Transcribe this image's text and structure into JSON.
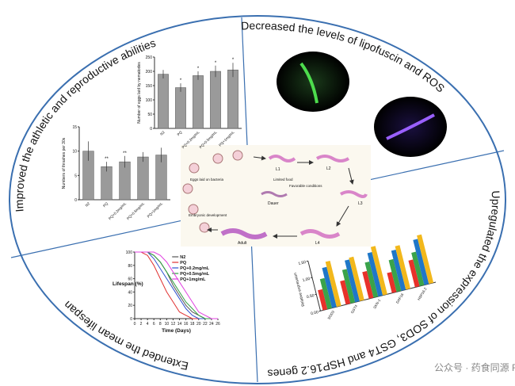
{
  "sections": [
    "Improved the athletic and reproductive abilities",
    "Decreased the levels of lipofuscin and ROS",
    "Upregulated the expression of SOD3, GST4 and HSP16.2 genes",
    "Extended the mean lifespan"
  ],
  "lifecycle": {
    "stages": [
      "L1",
      "L2",
      "L3",
      "L4",
      "Adult",
      "Dauer"
    ],
    "notes": [
      "Limited food",
      "Favorable conditions",
      "Eggs laid on bacteria",
      "Embryonic development"
    ]
  },
  "watermark": "公众号 · 药食同源 FMH",
  "chart_data": [
    {
      "type": "bar",
      "ylabel": "Number of eggs laid by nematodes",
      "categories": [
        "N2",
        "PQ",
        "PQ+0.2mg/mL",
        "PQ+0.5mg/mL",
        "PQ+1mg/mL"
      ],
      "values": [
        190,
        143,
        185,
        200,
        205
      ],
      "errors": [
        15,
        15,
        15,
        20,
        25
      ],
      "sig": [
        null,
        "*",
        "*",
        "*",
        "*"
      ],
      "color": "#9a9a9a",
      "ylim": [
        0,
        250
      ],
      "yticks": [
        0,
        50,
        100,
        150,
        200,
        250
      ]
    },
    {
      "type": "bar",
      "ylabel": "Numbers of thrashes per 30s",
      "categories": [
        "N2",
        "PQ",
        "PQ+0.2mg/mL",
        "PQ+0.5mg/mL",
        "PQ+1mg/mL"
      ],
      "values": [
        10,
        6.8,
        7.8,
        8.8,
        9.2
      ],
      "errors": [
        2,
        1,
        1.2,
        1,
        1.5
      ],
      "sig": [
        null,
        "**",
        "**",
        null,
        null
      ],
      "color": "#9a9a9a",
      "ylim": [
        0,
        15
      ],
      "yticks": [
        0,
        5,
        10,
        15
      ]
    },
    {
      "type": "line",
      "xlabel": "Time (Days)",
      "ylabel": "Lifespan (%)",
      "x": [
        0,
        2,
        4,
        6,
        8,
        10,
        12,
        14,
        16,
        18,
        20,
        22,
        24,
        26
      ],
      "xlim": [
        0,
        26
      ],
      "xticks": [
        0,
        2,
        4,
        6,
        8,
        10,
        12,
        14,
        16,
        18,
        20,
        22,
        24,
        26
      ],
      "ylim": [
        0,
        100
      ],
      "yticks": [
        0,
        20,
        40,
        60,
        80,
        100
      ],
      "series": [
        {
          "name": "N2",
          "color": "#555555",
          "values": [
            100,
            100,
            100,
            95,
            85,
            70,
            50,
            35,
            20,
            10,
            5,
            0,
            0,
            0
          ]
        },
        {
          "name": "PQ",
          "color": "#e03030",
          "values": [
            100,
            100,
            95,
            80,
            60,
            40,
            25,
            10,
            5,
            0,
            0,
            0,
            0,
            0
          ]
        },
        {
          "name": "PQ+0.2mg/mL",
          "color": "#3050d0",
          "values": [
            100,
            100,
            100,
            90,
            75,
            60,
            45,
            30,
            15,
            5,
            0,
            0,
            0,
            0
          ]
        },
        {
          "name": "PQ+0.5mg/mL",
          "color": "#30a040",
          "values": [
            100,
            100,
            100,
            95,
            85,
            70,
            55,
            40,
            25,
            15,
            5,
            0,
            0,
            0
          ]
        },
        {
          "name": "PQ+1mg/mL",
          "color": "#e040e0",
          "values": [
            100,
            100,
            100,
            100,
            95,
            85,
            70,
            55,
            40,
            25,
            10,
            5,
            0,
            0
          ]
        }
      ]
    },
    {
      "type": "bar",
      "ylabel": "Relative expression",
      "categories": [
        "SOD3",
        "GST4",
        "SKN-1",
        "DAF16",
        "HSP16.2"
      ],
      "ylim": [
        0,
        1.5
      ],
      "yticks": [
        {
          "value": 0,
          "label": "0.00"
        },
        {
          "value": 0.5,
          "label": "0.50"
        },
        {
          "value": 1,
          "label": "1.00"
        },
        {
          "value": 1.5,
          "label": "1.50"
        }
      ],
      "series": [
        {
          "color": "#e8312a",
          "values": [
            0.6,
            0.7,
            0.8,
            0.6,
            0.8
          ]
        },
        {
          "color": "#3aa34a",
          "values": [
            0.9,
            1.0,
            1.05,
            0.95,
            1.0
          ]
        },
        {
          "color": "#1f77c8",
          "values": [
            1.2,
            1.25,
            1.3,
            1.2,
            1.35
          ]
        },
        {
          "color": "#f2b81c",
          "values": [
            1.35,
            1.3,
            1.45,
            1.3,
            1.45
          ]
        }
      ]
    }
  ]
}
